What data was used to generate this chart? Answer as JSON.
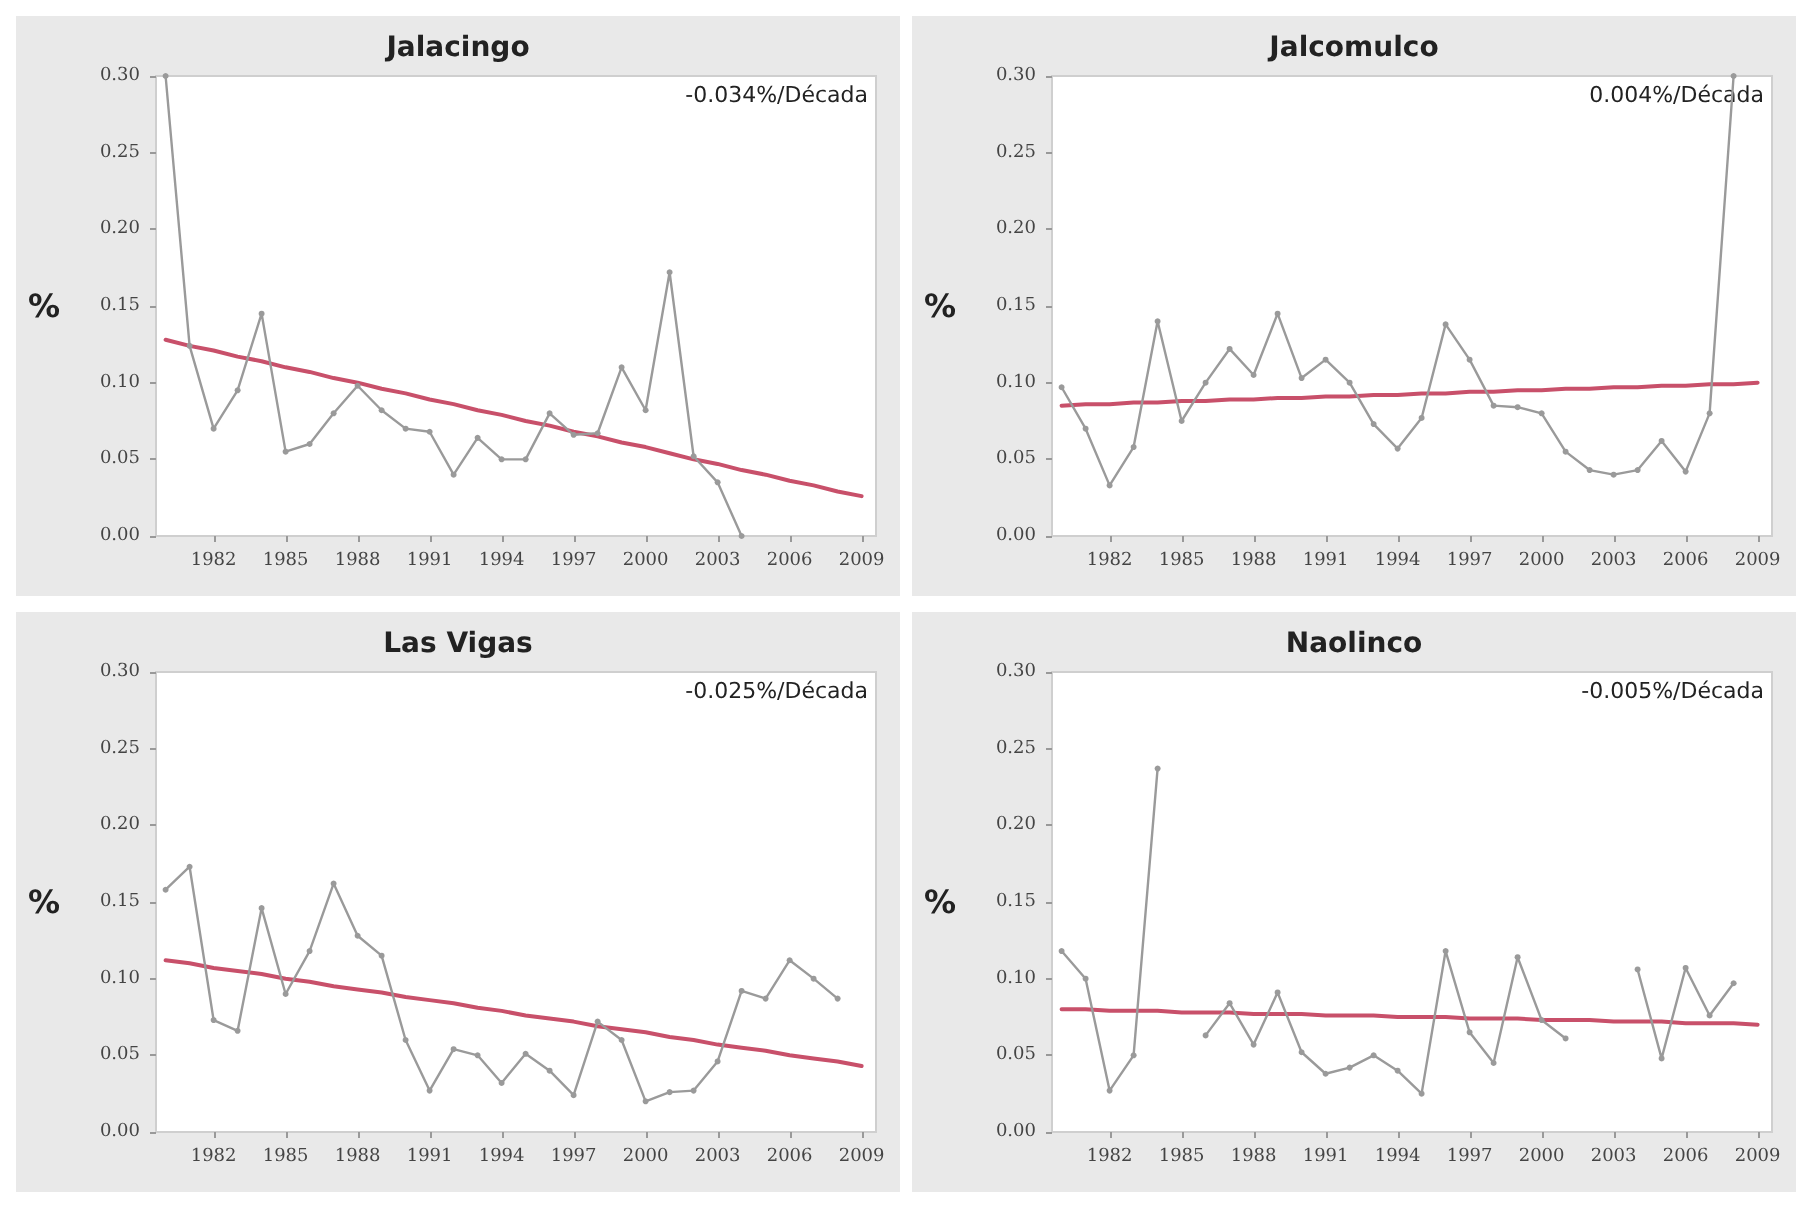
{
  "chart_data": [
    {
      "type": "line",
      "title": "Jalacingo",
      "ylabel": "%",
      "annotations": [
        "-0.034%/Década"
      ],
      "x": [
        1980,
        1981,
        1982,
        1983,
        1984,
        1985,
        1986,
        1987,
        1988,
        1989,
        1990,
        1991,
        1992,
        1993,
        1994,
        1995,
        1996,
        1997,
        1998,
        1999,
        2000,
        2001,
        2002,
        2003,
        2004,
        2005,
        2006,
        2007,
        2008,
        2009
      ],
      "xlim": [
        1979.6,
        2009.6
      ],
      "xticks": [
        1982,
        1985,
        1988,
        1991,
        1994,
        1997,
        2000,
        2003,
        2006,
        2009
      ],
      "ylim": [
        0,
        0.3
      ],
      "yticks": [
        {
          "value": 0,
          "label": "0.00"
        },
        {
          "value": 0.05,
          "label": "0.05"
        },
        {
          "value": 0.1,
          "label": "0.10"
        },
        {
          "value": 0.15,
          "label": "0.15"
        },
        {
          "value": 0.2,
          "label": "0.20"
        },
        {
          "value": 0.25,
          "label": "0.25"
        },
        {
          "value": 0.3,
          "label": "0.30"
        }
      ],
      "grid": false,
      "marker": "circle",
      "series": [
        {
          "color": "#9a9a9a",
          "values": [
            0.3,
            0.124,
            0.07,
            0.095,
            0.145,
            0.055,
            0.06,
            0.08,
            0.098,
            0.082,
            0.07,
            0.068,
            0.04,
            0.064,
            0.05,
            0.05,
            0.08,
            0.066,
            0.067,
            0.11,
            0.082,
            0.172,
            0.052,
            0.035,
            0.0,
            null,
            null,
            null,
            null,
            null
          ]
        },
        {
          "color": "#c8506a",
          "marker": "none",
          "values": [
            0.128,
            0.124,
            0.121,
            0.117,
            0.114,
            0.11,
            0.107,
            0.103,
            0.1,
            0.096,
            0.093,
            0.089,
            0.086,
            0.082,
            0.079,
            0.075,
            0.072,
            0.068,
            0.065,
            0.061,
            0.058,
            0.054,
            0.05,
            0.047,
            0.043,
            0.04,
            0.036,
            0.033,
            0.029,
            0.026
          ]
        }
      ]
    },
    {
      "type": "line",
      "title": "Jalcomulco",
      "ylabel": "%",
      "annotations": [
        "0.004%/Década"
      ],
      "x": [
        1980,
        1981,
        1982,
        1983,
        1984,
        1985,
        1986,
        1987,
        1988,
        1989,
        1990,
        1991,
        1992,
        1993,
        1994,
        1995,
        1996,
        1997,
        1998,
        1999,
        2000,
        2001,
        2002,
        2003,
        2004,
        2005,
        2006,
        2007,
        2008,
        2009
      ],
      "xlim": [
        1979.6,
        2009.6
      ],
      "xticks": [
        1982,
        1985,
        1988,
        1991,
        1994,
        1997,
        2000,
        2003,
        2006,
        2009
      ],
      "ylim": [
        0,
        0.3
      ],
      "yticks": [
        {
          "value": 0,
          "label": "0.00"
        },
        {
          "value": 0.05,
          "label": "0.05"
        },
        {
          "value": 0.1,
          "label": "0.10"
        },
        {
          "value": 0.15,
          "label": "0.15"
        },
        {
          "value": 0.2,
          "label": "0.20"
        },
        {
          "value": 0.25,
          "label": "0.25"
        },
        {
          "value": 0.3,
          "label": "0.30"
        }
      ],
      "grid": false,
      "marker": "circle",
      "series": [
        {
          "color": "#9a9a9a",
          "values": [
            0.097,
            0.07,
            0.033,
            0.058,
            0.14,
            0.075,
            0.1,
            0.122,
            0.105,
            0.145,
            0.103,
            0.115,
            0.1,
            0.073,
            0.057,
            0.077,
            0.138,
            0.115,
            0.085,
            0.084,
            0.08,
            0.055,
            0.043,
            0.04,
            0.043,
            0.062,
            0.042,
            0.08,
            0.3,
            null
          ]
        },
        {
          "color": "#c8506a",
          "marker": "none",
          "values": [
            0.085,
            0.086,
            0.086,
            0.087,
            0.087,
            0.088,
            0.088,
            0.089,
            0.089,
            0.09,
            0.09,
            0.091,
            0.091,
            0.092,
            0.092,
            0.093,
            0.093,
            0.094,
            0.094,
            0.095,
            0.095,
            0.096,
            0.096,
            0.097,
            0.097,
            0.098,
            0.098,
            0.099,
            0.099,
            0.1
          ]
        }
      ]
    },
    {
      "type": "line",
      "title": "Las Vigas",
      "ylabel": "%",
      "annotations": [
        "-0.025%/Década"
      ],
      "x": [
        1980,
        1981,
        1982,
        1983,
        1984,
        1985,
        1986,
        1987,
        1988,
        1989,
        1990,
        1991,
        1992,
        1993,
        1994,
        1995,
        1996,
        1997,
        1998,
        1999,
        2000,
        2001,
        2002,
        2003,
        2004,
        2005,
        2006,
        2007,
        2008,
        2009
      ],
      "xlim": [
        1979.6,
        2009.6
      ],
      "xticks": [
        1982,
        1985,
        1988,
        1991,
        1994,
        1997,
        2000,
        2003,
        2006,
        2009
      ],
      "ylim": [
        0,
        0.3
      ],
      "yticks": [
        {
          "value": 0,
          "label": "0.00"
        },
        {
          "value": 0.05,
          "label": "0.05"
        },
        {
          "value": 0.1,
          "label": "0.10"
        },
        {
          "value": 0.15,
          "label": "0.15"
        },
        {
          "value": 0.2,
          "label": "0.20"
        },
        {
          "value": 0.25,
          "label": "0.25"
        },
        {
          "value": 0.3,
          "label": "0.30"
        }
      ],
      "grid": false,
      "marker": "circle",
      "series": [
        {
          "color": "#9a9a9a",
          "values": [
            0.158,
            0.173,
            0.073,
            0.066,
            0.146,
            0.09,
            0.118,
            0.162,
            0.128,
            0.115,
            0.06,
            0.027,
            0.054,
            0.05,
            0.032,
            0.051,
            0.04,
            0.024,
            0.072,
            0.06,
            0.02,
            0.026,
            0.027,
            0.046,
            0.092,
            0.087,
            0.112,
            0.1,
            0.087,
            null
          ]
        },
        {
          "color": "#c8506a",
          "marker": "none",
          "values": [
            0.112,
            0.11,
            0.107,
            0.105,
            0.103,
            0.1,
            0.098,
            0.095,
            0.093,
            0.091,
            0.088,
            0.086,
            0.084,
            0.081,
            0.079,
            0.076,
            0.074,
            0.072,
            0.069,
            0.067,
            0.065,
            0.062,
            0.06,
            0.057,
            0.055,
            0.053,
            0.05,
            0.048,
            0.046,
            0.043
          ]
        }
      ]
    },
    {
      "type": "line",
      "title": "Naolinco",
      "ylabel": "%",
      "annotations": [
        "-0.005%/Década"
      ],
      "x": [
        1980,
        1981,
        1982,
        1983,
        1984,
        1985,
        1986,
        1987,
        1988,
        1989,
        1990,
        1991,
        1992,
        1993,
        1994,
        1995,
        1996,
        1997,
        1998,
        1999,
        2000,
        2001,
        2002,
        2003,
        2004,
        2005,
        2006,
        2007,
        2008,
        2009
      ],
      "xlim": [
        1979.6,
        2009.6
      ],
      "xticks": [
        1982,
        1985,
        1988,
        1991,
        1994,
        1997,
        2000,
        2003,
        2006,
        2009
      ],
      "ylim": [
        0,
        0.3
      ],
      "yticks": [
        {
          "value": 0,
          "label": "0.00"
        },
        {
          "value": 0.05,
          "label": "0.05"
        },
        {
          "value": 0.1,
          "label": "0.10"
        },
        {
          "value": 0.15,
          "label": "0.15"
        },
        {
          "value": 0.2,
          "label": "0.20"
        },
        {
          "value": 0.25,
          "label": "0.25"
        },
        {
          "value": 0.3,
          "label": "0.30"
        }
      ],
      "grid": false,
      "marker": "circle",
      "series": [
        {
          "color": "#9a9a9a",
          "values": [
            0.118,
            0.1,
            0.027,
            0.05,
            0.237,
            null,
            0.063,
            0.084,
            0.057,
            0.091,
            0.052,
            0.038,
            0.042,
            0.05,
            0.04,
            0.025,
            0.118,
            0.065,
            0.045,
            0.114,
            0.073,
            0.061,
            null,
            null,
            0.106,
            0.048,
            0.107,
            0.076,
            0.097,
            null
          ]
        },
        {
          "color": "#c8506a",
          "marker": "none",
          "values": [
            0.08,
            0.08,
            0.079,
            0.079,
            0.079,
            0.078,
            0.078,
            0.078,
            0.077,
            0.077,
            0.077,
            0.076,
            0.076,
            0.076,
            0.075,
            0.075,
            0.075,
            0.074,
            0.074,
            0.074,
            0.073,
            0.073,
            0.073,
            0.072,
            0.072,
            0.072,
            0.071,
            0.071,
            0.071,
            0.07
          ]
        }
      ]
    }
  ]
}
